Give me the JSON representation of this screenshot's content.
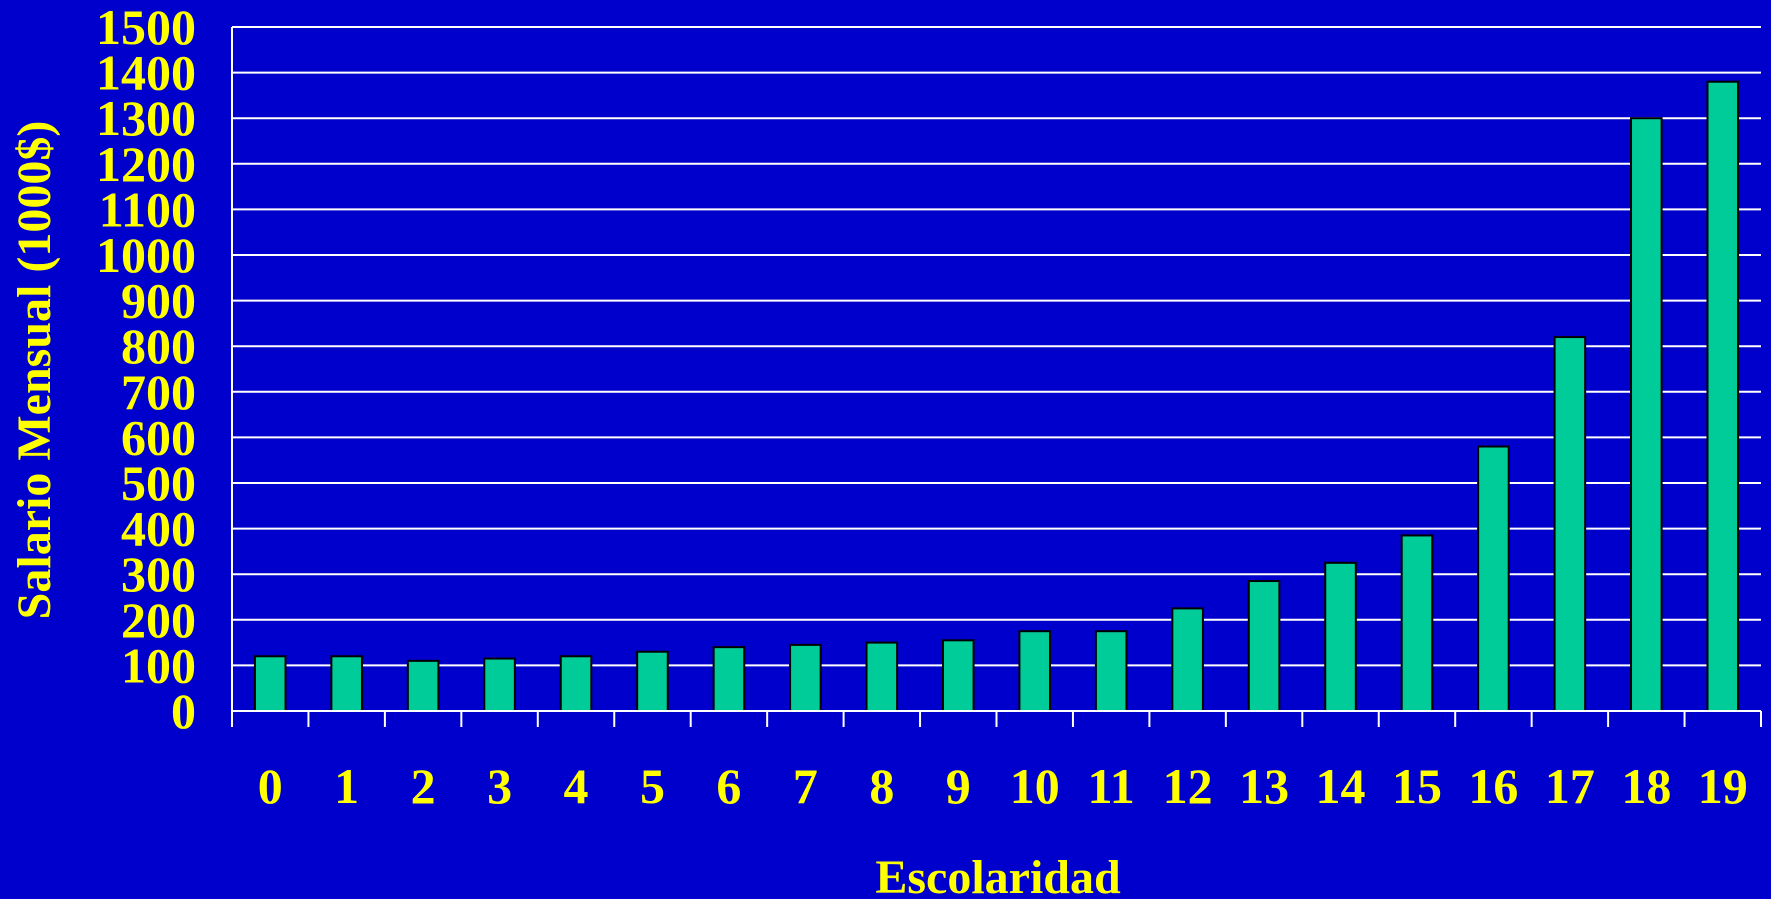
{
  "chart_data": {
    "type": "bar",
    "categories": [
      "0",
      "1",
      "2",
      "3",
      "4",
      "5",
      "6",
      "7",
      "8",
      "9",
      "10",
      "11",
      "12",
      "13",
      "14",
      "15",
      "16",
      "17",
      "18",
      "19"
    ],
    "values": [
      120,
      120,
      110,
      115,
      120,
      130,
      140,
      145,
      150,
      155,
      175,
      175,
      225,
      285,
      325,
      385,
      580,
      820,
      1300,
      1380
    ],
    "xlabel": "Escolaridad",
    "ylabel": "Salario Mensual (1000$)",
    "ylim": [
      0,
      1500
    ],
    "yticks": [
      "0",
      "100",
      "200",
      "300",
      "400",
      "500",
      "600",
      "700",
      "800",
      "900",
      "1000",
      "1100",
      "1200",
      "1300",
      "1400",
      "1500"
    ],
    "grid": true,
    "colors": {
      "background": "#0000CC",
      "bar": "#00CC99",
      "text": "#FFFF00",
      "grid": "#FFFFFF"
    }
  }
}
